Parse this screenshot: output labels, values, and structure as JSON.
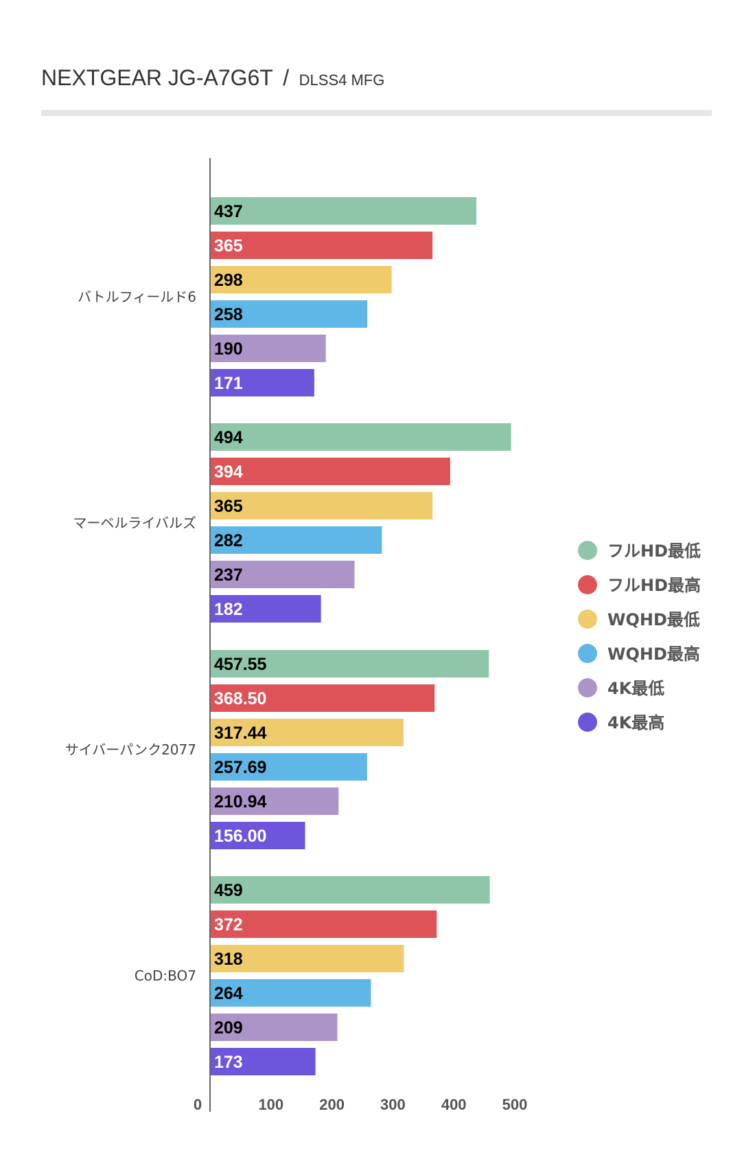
{
  "chart_data": {
    "type": "bar",
    "orientation": "horizontal",
    "title": "NEXTGEAR JG-A7G6T",
    "title_separator": "/",
    "subtitle": "DLSS4 MFG",
    "categories": [
      "バトルフィールド6",
      "マーベルライバルズ",
      "サイバーパンク2077",
      "CoD:BO7"
    ],
    "series": [
      {
        "name": "フルHD最低",
        "color": "#8fc5a8",
        "label_color": "#000000",
        "values": [
          437,
          494,
          457.55,
          459
        ],
        "labels": [
          "437",
          "494",
          "457.55",
          "459"
        ]
      },
      {
        "name": "フルHD最高",
        "color": "#de5357",
        "label_color": "#ffffff",
        "values": [
          365,
          394,
          368.5,
          372
        ],
        "labels": [
          "365",
          "394",
          "368.50",
          "372"
        ]
      },
      {
        "name": "WQHD最低",
        "color": "#efcb6c",
        "label_color": "#000000",
        "values": [
          298,
          365,
          317.44,
          318
        ],
        "labels": [
          "298",
          "365",
          "317.44",
          "318"
        ]
      },
      {
        "name": "WQHD最高",
        "color": "#5eb7e6",
        "label_color": "#000000",
        "values": [
          258,
          282,
          257.69,
          264
        ],
        "labels": [
          "258",
          "282",
          "257.69",
          "264"
        ]
      },
      {
        "name": "4K最低",
        "color": "#ac94c9",
        "label_color": "#000000",
        "values": [
          190,
          237,
          210.94,
          209
        ],
        "labels": [
          "190",
          "237",
          "210.94",
          "209"
        ]
      },
      {
        "name": "4K最高",
        "color": "#6f54dc",
        "label_color": "#ffffff",
        "values": [
          171,
          182,
          156.0,
          173
        ],
        "labels": [
          "171",
          "182",
          "156.00",
          "173"
        ]
      }
    ],
    "x_ticks": [
      0,
      100,
      200,
      300,
      400,
      500
    ],
    "xlim": [
      0,
      500
    ],
    "xlabel": "",
    "ylabel": "",
    "grid": false,
    "legend_position": "right"
  }
}
